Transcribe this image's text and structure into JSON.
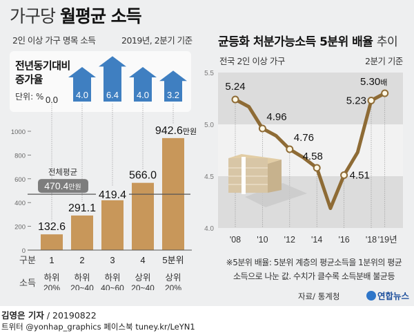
{
  "header": {
    "title_light": "가구당",
    "title_bold": "월평균 소득",
    "subtitle_left": "2인 이상 가구 명목 소득",
    "subtitle_right": "2019년, 2분기 기준"
  },
  "growth_box": {
    "title_line1": "전년동기대비",
    "title_line2": "증가율",
    "unit": "단위: %"
  },
  "right_header": {
    "title_bold": "균등화 처분가능소득 5분위 배율",
    "title_light": "추이",
    "subtitle_left": "전국 2인 이상 가구",
    "subtitle_right": "2분기 기준"
  },
  "footnote": {
    "line1": "※5분위 배율: 5분위 계층의 평균소득을 1분위의 평균",
    "line2": "소득으로 나눈 값. 수치가 클수록 소득분배 불균등",
    "source": "자료/ 통계청"
  },
  "logo": {
    "text": "연합뉴스"
  },
  "credits": {
    "byline": "김영은 기자",
    "date": "/ 20190822",
    "social": "트위터 @yonhap_graphics  페이스북 tuney.kr/LeYN1"
  },
  "colors": {
    "bar": "#c8975a",
    "arrow": "#3f7fc1",
    "line": "#8e6b35",
    "avg_badge": "#7d7d7d",
    "band": "#dcdcdc"
  },
  "chart_data": [
    {
      "type": "bar",
      "title": "가구당 월평균 소득",
      "subtitle": "2인 이상 가구 명목 소득",
      "categories": [
        "1",
        "2",
        "3",
        "4",
        "5분위"
      ],
      "category_sublabels": [
        "하위\n20%",
        "하위\n20~40",
        "하위\n40~60",
        "상위\n20~40",
        "상위\n20%"
      ],
      "category_header": "구분",
      "sublabel_header": "소득",
      "values": [
        132.6,
        291.1,
        419.4,
        566.0,
        942.6
      ],
      "value_labels": [
        "132.6",
        "291.1",
        "419.4",
        "566.0",
        "942.6"
      ],
      "last_label_unit": "만원",
      "ylim": [
        0,
        1000
      ],
      "yticks": [
        0,
        200,
        400,
        600,
        800,
        1000
      ],
      "average": {
        "label": "전체평균",
        "value": 470.4,
        "value_label": "470.4",
        "unit": "만원"
      },
      "growth_rates": {
        "values": [
          0.0,
          4.0,
          6.4,
          4.0,
          3.2
        ],
        "labels": [
          "0.0",
          "4.0",
          "6.4",
          "4.0",
          "3.2"
        ]
      }
    },
    {
      "type": "line",
      "title": "균등화 처분가능소득 5분위 배율 추이",
      "x": [
        2008,
        2009,
        2010,
        2011,
        2012,
        2013,
        2014,
        2015,
        2016,
        2017,
        2018,
        2019
      ],
      "y": [
        5.24,
        5.17,
        4.96,
        4.89,
        4.76,
        4.68,
        4.58,
        4.19,
        4.51,
        4.73,
        5.23,
        5.3
      ],
      "labeled_points": [
        {
          "x": 2008,
          "label": "5.24"
        },
        {
          "x": 2010,
          "label": "4.96"
        },
        {
          "x": 2012,
          "label": "4.76"
        },
        {
          "x": 2014,
          "label": "4.58"
        },
        {
          "x": 2016,
          "label": "4.51"
        },
        {
          "x": 2018,
          "label": "5.23"
        },
        {
          "x": 2019,
          "label": "5.30",
          "unit": "배"
        }
      ],
      "xticks": [
        2008,
        2010,
        2012,
        2014,
        2016,
        2018,
        2019
      ],
      "xtick_labels": [
        "'08",
        "'10",
        "'12",
        "'14",
        "'16",
        "'18",
        "'19년"
      ],
      "ylim": [
        4.0,
        5.5
      ],
      "yticks": [
        4.0,
        4.5,
        5.0,
        5.5
      ],
      "ytick_labels": [
        "4.0",
        "4.5",
        "5.0",
        "5.5"
      ]
    }
  ]
}
